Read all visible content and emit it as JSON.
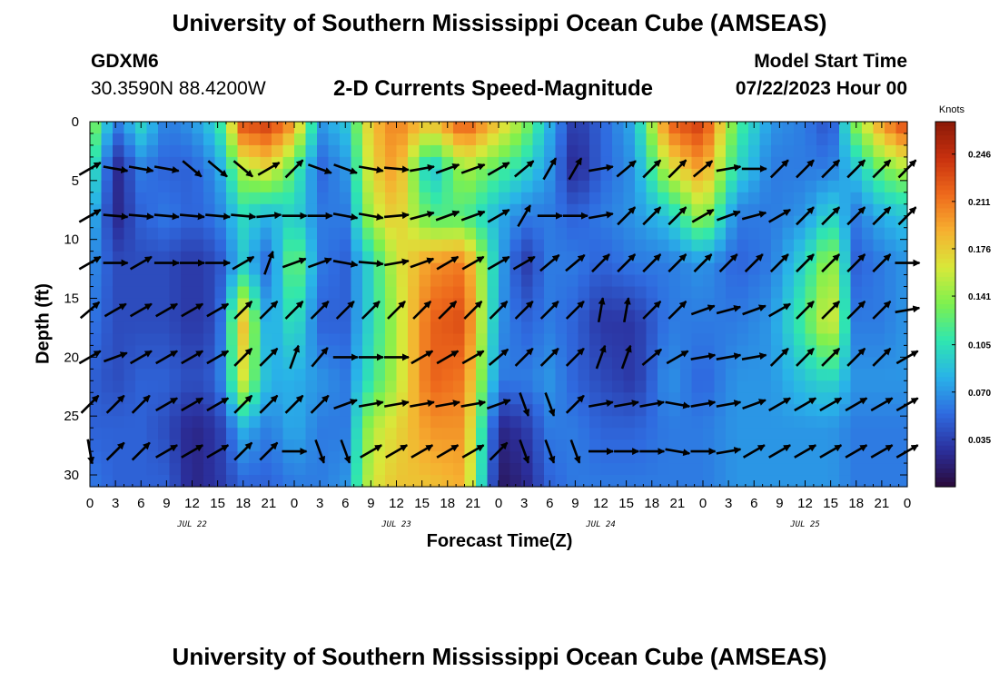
{
  "header": {
    "title": "University of Southern Mississippi Ocean Cube (AMSEAS)",
    "station": "GDXM6",
    "coords": "30.3590N  88.4200W",
    "product": "2-D Currents Speed-Magnitude",
    "model_start_label": "Model Start Time",
    "model_start_value": "07/22/2023 Hour 00"
  },
  "footer": {
    "title": "University of Southern Mississippi Ocean Cube (AMSEAS)"
  },
  "chart_data": {
    "type": "heatmap",
    "xlabel": "Forecast Time(Z)",
    "ylabel": "Depth (ft)",
    "xlim_hours": [
      0,
      96
    ],
    "ylim": [
      0,
      31
    ],
    "x_tick_labels": [
      "0",
      "3",
      "6",
      "9",
      "12",
      "15",
      "18",
      "21",
      "0",
      "3",
      "6",
      "9",
      "12",
      "15",
      "18",
      "21",
      "0",
      "3",
      "6",
      "9",
      "12",
      "15",
      "18",
      "21",
      "0",
      "3",
      "6",
      "9",
      "12",
      "15",
      "18",
      "21",
      "0"
    ],
    "day_labels": [
      "JUL 22",
      "JUL 23",
      "JUL 24",
      "JUL 25"
    ],
    "y_ticks": [
      0,
      5,
      10,
      15,
      20,
      25,
      30
    ],
    "colorbar": {
      "units": "Knots",
      "ticks": [
        "0.246",
        "0.211",
        "0.176",
        "0.141",
        "0.105",
        "0.070",
        "0.035"
      ],
      "range": [
        0,
        0.27
      ],
      "colors": [
        "#2a0a3a",
        "#2b2f9c",
        "#2f6be0",
        "#29b3e8",
        "#2fe6b0",
        "#7df04f",
        "#d8e83a",
        "#f6b030",
        "#ee6a1c",
        "#c8300e",
        "#8a1a08"
      ]
    },
    "speed_profile_by_hour": [
      {
        "h": 0,
        "v": [
          0.15,
          0.12,
          0.09,
          0.07,
          0.06,
          0.05,
          0.05,
          0.06
        ]
      },
      {
        "h": 3,
        "v": [
          0.06,
          0.02,
          0.02,
          0.04,
          0.04,
          0.04,
          0.05,
          0.05
        ]
      },
      {
        "h": 6,
        "v": [
          0.1,
          0.06,
          0.05,
          0.04,
          0.04,
          0.05,
          0.05,
          0.05
        ]
      },
      {
        "h": 9,
        "v": [
          0.06,
          0.05,
          0.06,
          0.04,
          0.04,
          0.05,
          0.04,
          0.05
        ]
      },
      {
        "h": 12,
        "v": [
          0.07,
          0.05,
          0.05,
          0.03,
          0.03,
          0.04,
          0.02,
          0.02
        ]
      },
      {
        "h": 15,
        "v": [
          0.1,
          0.07,
          0.06,
          0.04,
          0.04,
          0.05,
          0.03,
          0.03
        ]
      },
      {
        "h": 18,
        "v": [
          0.23,
          0.15,
          0.1,
          0.09,
          0.18,
          0.16,
          0.08,
          0.05
        ]
      },
      {
        "h": 21,
        "v": [
          0.24,
          0.17,
          0.08,
          0.05,
          0.07,
          0.08,
          0.06,
          0.05
        ]
      },
      {
        "h": 24,
        "v": [
          0.2,
          0.12,
          0.1,
          0.14,
          0.11,
          0.08,
          0.08,
          0.06
        ]
      },
      {
        "h": 27,
        "v": [
          0.07,
          0.05,
          0.06,
          0.06,
          0.05,
          0.07,
          0.06,
          0.06
        ]
      },
      {
        "h": 30,
        "v": [
          0.09,
          0.07,
          0.06,
          0.05,
          0.05,
          0.06,
          0.06,
          0.07
        ]
      },
      {
        "h": 33,
        "v": [
          0.18,
          0.17,
          0.15,
          0.1,
          0.1,
          0.11,
          0.15,
          0.16
        ]
      },
      {
        "h": 36,
        "v": [
          0.21,
          0.2,
          0.18,
          0.16,
          0.15,
          0.15,
          0.17,
          0.18
        ]
      },
      {
        "h": 40,
        "v": [
          0.18,
          0.08,
          0.12,
          0.2,
          0.22,
          0.22,
          0.2,
          0.18
        ]
      },
      {
        "h": 44,
        "v": [
          0.23,
          0.15,
          0.12,
          0.21,
          0.23,
          0.21,
          0.2,
          0.19
        ]
      },
      {
        "h": 48,
        "v": [
          0.18,
          0.12,
          0.08,
          0.08,
          0.07,
          0.06,
          0.02,
          0.01
        ]
      },
      {
        "h": 51,
        "v": [
          0.14,
          0.1,
          0.06,
          0.03,
          0.05,
          0.06,
          0.03,
          0.02
        ]
      },
      {
        "h": 54,
        "v": [
          0.08,
          0.07,
          0.06,
          0.06,
          0.06,
          0.07,
          0.06,
          0.05
        ]
      },
      {
        "h": 57,
        "v": [
          0.03,
          0.02,
          0.05,
          0.06,
          0.05,
          0.05,
          0.06,
          0.06
        ]
      },
      {
        "h": 60,
        "v": [
          0.05,
          0.05,
          0.06,
          0.05,
          0.03,
          0.04,
          0.05,
          0.06
        ]
      },
      {
        "h": 64,
        "v": [
          0.08,
          0.07,
          0.07,
          0.06,
          0.03,
          0.03,
          0.05,
          0.06
        ]
      },
      {
        "h": 68,
        "v": [
          0.22,
          0.16,
          0.09,
          0.06,
          0.06,
          0.07,
          0.06,
          0.06
        ]
      },
      {
        "h": 72,
        "v": [
          0.24,
          0.2,
          0.15,
          0.07,
          0.06,
          0.05,
          0.06,
          0.06
        ]
      },
      {
        "h": 76,
        "v": [
          0.12,
          0.1,
          0.06,
          0.05,
          0.06,
          0.07,
          0.07,
          0.07
        ]
      },
      {
        "h": 80,
        "v": [
          0.07,
          0.06,
          0.06,
          0.06,
          0.07,
          0.07,
          0.07,
          0.07
        ]
      },
      {
        "h": 84,
        "v": [
          0.06,
          0.06,
          0.07,
          0.1,
          0.12,
          0.09,
          0.07,
          0.07
        ]
      },
      {
        "h": 87,
        "v": [
          0.04,
          0.06,
          0.1,
          0.15,
          0.17,
          0.1,
          0.07,
          0.07
        ]
      },
      {
        "h": 90,
        "v": [
          0.14,
          0.09,
          0.06,
          0.05,
          0.06,
          0.07,
          0.06,
          0.06
        ]
      },
      {
        "h": 93,
        "v": [
          0.2,
          0.13,
          0.08,
          0.06,
          0.06,
          0.07,
          0.06,
          0.06
        ]
      },
      {
        "h": 96,
        "v": [
          0.24,
          0.15,
          0.09,
          0.07,
          0.07,
          0.07,
          0.06,
          0.06
        ]
      }
    ],
    "profile_depths_ft": [
      0,
      4,
      8,
      12,
      17,
      22,
      26,
      31
    ],
    "vector_hours": [
      0,
      3,
      6,
      9,
      12,
      15,
      18,
      21,
      24,
      27,
      30,
      33,
      36,
      39,
      42,
      45,
      48,
      51,
      54,
      57,
      60,
      63,
      66,
      69,
      72,
      75,
      78,
      81,
      84,
      87,
      90,
      93,
      96
    ],
    "vector_depths_ft": [
      4,
      8,
      12,
      16,
      20,
      24,
      28
    ],
    "vector_directions_deg": [
      [
        60,
        100,
        100,
        100,
        130,
        130,
        130,
        60,
        45,
        110,
        110,
        100,
        95,
        80,
        70,
        70,
        60,
        50,
        30,
        30,
        80,
        50,
        45,
        45,
        50,
        80,
        90,
        45,
        45,
        45,
        45,
        45,
        45
      ],
      [
        60,
        95,
        95,
        95,
        95,
        95,
        95,
        85,
        90,
        90,
        100,
        100,
        85,
        75,
        70,
        70,
        60,
        30,
        90,
        90,
        80,
        45,
        45,
        45,
        60,
        70,
        75,
        60,
        45,
        45,
        45,
        45,
        45
      ],
      [
        60,
        90,
        60,
        90,
        90,
        90,
        60,
        20,
        70,
        70,
        100,
        95,
        80,
        70,
        60,
        60,
        60,
        60,
        50,
        50,
        45,
        45,
        45,
        45,
        45,
        45,
        45,
        45,
        45,
        45,
        45,
        45,
        90
      ],
      [
        50,
        60,
        60,
        60,
        60,
        60,
        45,
        45,
        45,
        45,
        45,
        45,
        45,
        45,
        45,
        45,
        45,
        45,
        45,
        45,
        10,
        10,
        45,
        45,
        70,
        75,
        70,
        60,
        45,
        45,
        45,
        45,
        80
      ],
      [
        60,
        70,
        60,
        60,
        60,
        60,
        45,
        45,
        20,
        40,
        90,
        90,
        90,
        60,
        60,
        60,
        50,
        45,
        45,
        45,
        20,
        20,
        50,
        60,
        80,
        80,
        80,
        45,
        45,
        45,
        45,
        45,
        60
      ],
      [
        45,
        45,
        45,
        60,
        60,
        60,
        45,
        45,
        45,
        45,
        70,
        80,
        80,
        80,
        80,
        80,
        70,
        160,
        160,
        45,
        80,
        80,
        80,
        100,
        80,
        80,
        70,
        60,
        60,
        60,
        60,
        60,
        60
      ],
      [
        170,
        45,
        45,
        60,
        60,
        60,
        45,
        45,
        90,
        160,
        160,
        60,
        60,
        60,
        60,
        60,
        45,
        160,
        160,
        160,
        90,
        90,
        90,
        100,
        90,
        80,
        60,
        60,
        60,
        60,
        60,
        60,
        60
      ]
    ]
  }
}
